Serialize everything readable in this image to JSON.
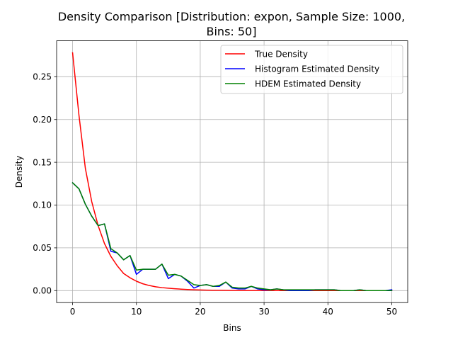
{
  "chart_data": {
    "type": "line",
    "title_line1": "Density Comparison [Distribution: expon, Sample Size: 1000,",
    "title_line2": "Bins: 50]",
    "xlabel": "Bins",
    "ylabel": "Density",
    "xlim": [
      -2.5,
      52.5
    ],
    "ylim": [
      -0.014,
      0.292
    ],
    "x_ticks": [
      0,
      10,
      20,
      30,
      40,
      50
    ],
    "x_tick_labels": [
      "0",
      "10",
      "20",
      "30",
      "40",
      "50"
    ],
    "y_ticks": [
      0.0,
      0.05,
      0.1,
      0.15,
      0.2,
      0.25
    ],
    "y_tick_labels": [
      "0.00",
      "0.05",
      "0.10",
      "0.15",
      "0.20",
      "0.25"
    ],
    "grid": true,
    "legend_position": "top-right",
    "x": [
      0,
      1,
      2,
      3,
      4,
      5,
      6,
      7,
      8,
      9,
      10,
      11,
      12,
      13,
      14,
      15,
      16,
      17,
      18,
      19,
      20,
      21,
      22,
      23,
      24,
      25,
      26,
      27,
      28,
      29,
      30,
      31,
      32,
      33,
      34,
      35,
      36,
      37,
      38,
      39,
      40,
      41,
      42,
      43,
      44,
      45,
      46,
      47,
      48,
      49,
      50
    ],
    "series": [
      {
        "name": "True Density",
        "color": "#ff0000",
        "values": [
          0.278,
          0.205,
          0.143,
          0.104,
          0.076,
          0.055,
          0.04,
          0.029,
          0.02,
          0.015,
          0.011,
          0.008,
          0.006,
          0.0045,
          0.0035,
          0.0028,
          0.0022,
          0.0017,
          0.0013,
          0.001,
          0.0008,
          0.0006,
          0.0005,
          0.0004,
          0.0003,
          0.0002,
          0.0002,
          0.0001,
          0.0001,
          0.0001,
          0.0001,
          0.0001,
          0,
          0,
          0,
          0,
          0,
          0,
          0,
          0,
          0,
          0,
          0,
          0,
          0,
          0,
          0,
          0,
          0,
          0,
          0
        ]
      },
      {
        "name": "Histogram Estimated Density",
        "color": "#0000ff",
        "values": [
          0.126,
          0.119,
          0.101,
          0.087,
          0.076,
          0.078,
          0.046,
          0.044,
          0.036,
          0.041,
          0.019,
          0.025,
          0.025,
          0.025,
          0.031,
          0.014,
          0.019,
          0.017,
          0.011,
          0.003,
          0.006,
          0.007,
          0.005,
          0.005,
          0.01,
          0.003,
          0.002,
          0.002,
          0.005,
          0.002,
          0.001,
          0.001,
          0.002,
          0.001,
          0.0,
          0.0,
          0.0,
          0.0,
          0.001,
          0.001,
          0.001,
          0.001,
          0.0,
          0.0,
          0.0,
          0.001,
          0.0,
          0.0,
          0.0,
          0.0,
          0.001
        ]
      },
      {
        "name": "HDEM Estimated Density",
        "color": "#008000",
        "values": [
          0.126,
          0.119,
          0.101,
          0.087,
          0.076,
          0.078,
          0.049,
          0.044,
          0.036,
          0.041,
          0.024,
          0.025,
          0.025,
          0.025,
          0.031,
          0.018,
          0.019,
          0.017,
          0.012,
          0.007,
          0.006,
          0.007,
          0.005,
          0.006,
          0.01,
          0.004,
          0.003,
          0.003,
          0.005,
          0.003,
          0.002,
          0.001,
          0.002,
          0.001,
          0.001,
          0.001,
          0.001,
          0.001,
          0.001,
          0.001,
          0.001,
          0.001,
          0.0,
          0.0,
          0.0,
          0.001,
          0.0,
          0.0,
          0.0,
          0.0,
          0.0
        ]
      }
    ]
  }
}
